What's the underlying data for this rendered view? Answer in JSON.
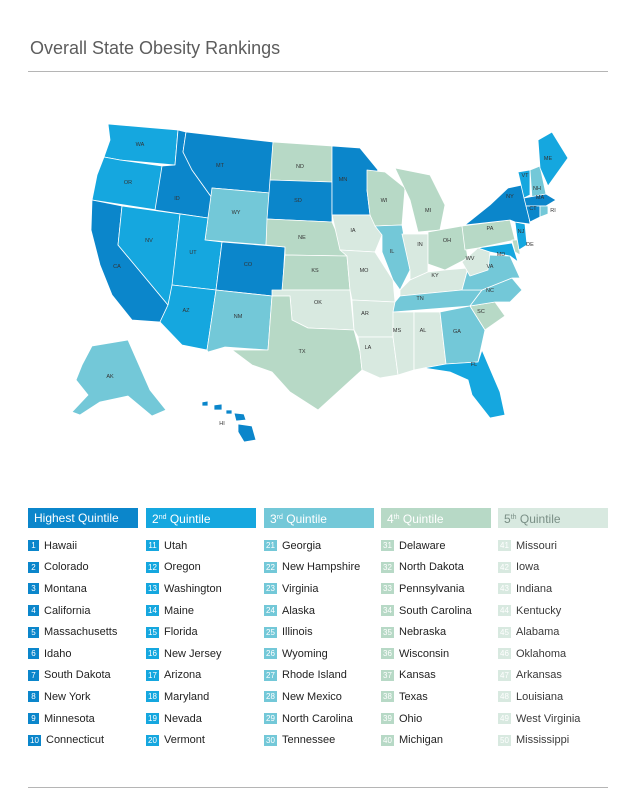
{
  "title": "Overall State Obesity Rankings",
  "colors": {
    "q1": "#0b86cb",
    "q2": "#15a7df",
    "q3": "#73c8d8",
    "q4": "#b7d9c6",
    "q5": "#d8e9e0",
    "border": "#ffffff"
  },
  "quintiles": [
    {
      "label": "Highest Quintile",
      "color_key": "q1",
      "states": [
        {
          "rank": "1",
          "name": "Hawaii"
        },
        {
          "rank": "2",
          "name": "Colorado"
        },
        {
          "rank": "3",
          "name": "Montana"
        },
        {
          "rank": "4",
          "name": "California"
        },
        {
          "rank": "5",
          "name": "Massachusetts"
        },
        {
          "rank": "6",
          "name": "Idaho"
        },
        {
          "rank": "7",
          "name": "South Dakota"
        },
        {
          "rank": "8",
          "name": "New York"
        },
        {
          "rank": "9",
          "name": "Minnesota"
        },
        {
          "rank": "10",
          "name": "Connecticut"
        }
      ]
    },
    {
      "label_num": "2",
      "label_sup": "nd",
      "label_text": " Quintile",
      "color_key": "q2",
      "states": [
        {
          "rank": "11",
          "name": "Utah"
        },
        {
          "rank": "12",
          "name": "Oregon"
        },
        {
          "rank": "13",
          "name": "Washington"
        },
        {
          "rank": "14",
          "name": "Maine"
        },
        {
          "rank": "15",
          "name": "Florida"
        },
        {
          "rank": "16",
          "name": "New Jersey"
        },
        {
          "rank": "17",
          "name": "Arizona"
        },
        {
          "rank": "18",
          "name": "Maryland"
        },
        {
          "rank": "19",
          "name": "Nevada"
        },
        {
          "rank": "20",
          "name": "Vermont"
        }
      ]
    },
    {
      "label_num": "3",
      "label_sup": "rd",
      "label_text": " Quintile",
      "color_key": "q3",
      "states": [
        {
          "rank": "21",
          "name": "Georgia"
        },
        {
          "rank": "22",
          "name": "New Hampshire"
        },
        {
          "rank": "23",
          "name": "Virginia"
        },
        {
          "rank": "24",
          "name": "Alaska"
        },
        {
          "rank": "25",
          "name": "Illinois"
        },
        {
          "rank": "26",
          "name": "Wyoming"
        },
        {
          "rank": "27",
          "name": "Rhode Island"
        },
        {
          "rank": "28",
          "name": "New Mexico"
        },
        {
          "rank": "29",
          "name": "North Carolina"
        },
        {
          "rank": "30",
          "name": "Tennessee"
        }
      ]
    },
    {
      "label_num": "4",
      "label_sup": "th",
      "label_text": " Quintile",
      "color_key": "q4",
      "states": [
        {
          "rank": "31",
          "name": "Delaware"
        },
        {
          "rank": "32",
          "name": "North Dakota"
        },
        {
          "rank": "33",
          "name": "Pennsylvania"
        },
        {
          "rank": "34",
          "name": "South Carolina"
        },
        {
          "rank": "35",
          "name": "Nebraska"
        },
        {
          "rank": "36",
          "name": "Wisconsin"
        },
        {
          "rank": "37",
          "name": "Kansas"
        },
        {
          "rank": "38",
          "name": "Texas"
        },
        {
          "rank": "39",
          "name": "Ohio"
        },
        {
          "rank": "40",
          "name": "Michigan"
        }
      ]
    },
    {
      "label_num": "5",
      "label_sup": "th",
      "label_text": " Quintile",
      "color_key": "q5",
      "states": [
        {
          "rank": "41",
          "name": "Missouri"
        },
        {
          "rank": "42",
          "name": "Iowa"
        },
        {
          "rank": "43",
          "name": "Indiana"
        },
        {
          "rank": "44",
          "name": "Kentucky"
        },
        {
          "rank": "45",
          "name": "Alabama"
        },
        {
          "rank": "46",
          "name": "Oklahoma"
        },
        {
          "rank": "47",
          "name": "Arkansas"
        },
        {
          "rank": "48",
          "name": "Louisiana"
        },
        {
          "rank": "49",
          "name": "West Virginia"
        },
        {
          "rank": "50",
          "name": "Mississippi"
        }
      ]
    }
  ],
  "map_labels": {
    "WA": "WA",
    "OR": "OR",
    "CA": "CA",
    "ID": "ID",
    "NV": "NV",
    "MT": "MT",
    "WY": "WY",
    "UT": "UT",
    "AZ": "AZ",
    "CO": "CO",
    "NM": "NM",
    "ND": "ND",
    "SD": "SD",
    "NE": "NE",
    "KS": "KS",
    "OK": "OK",
    "TX": "TX",
    "MN": "MN",
    "IA": "IA",
    "MO": "MO",
    "AR": "AR",
    "LA": "LA",
    "WI": "WI",
    "IL": "IL",
    "MI": "MI",
    "IN": "IN",
    "OH": "OH",
    "KY": "KY",
    "TN": "TN",
    "MS": "MS",
    "AL": "AL",
    "GA": "GA",
    "FL": "FL",
    "SC": "SC",
    "NC": "NC",
    "VA": "VA",
    "WV": "WV",
    "PA": "PA",
    "NY": "NY",
    "VT": "VT",
    "NH": "NH",
    "ME": "ME",
    "MA": "MA",
    "CT": "CT",
    "RI": "RI",
    "NJ": "NJ",
    "DE": "DE",
    "MD": "MD",
    "AK": "AK",
    "HI": "HI"
  }
}
